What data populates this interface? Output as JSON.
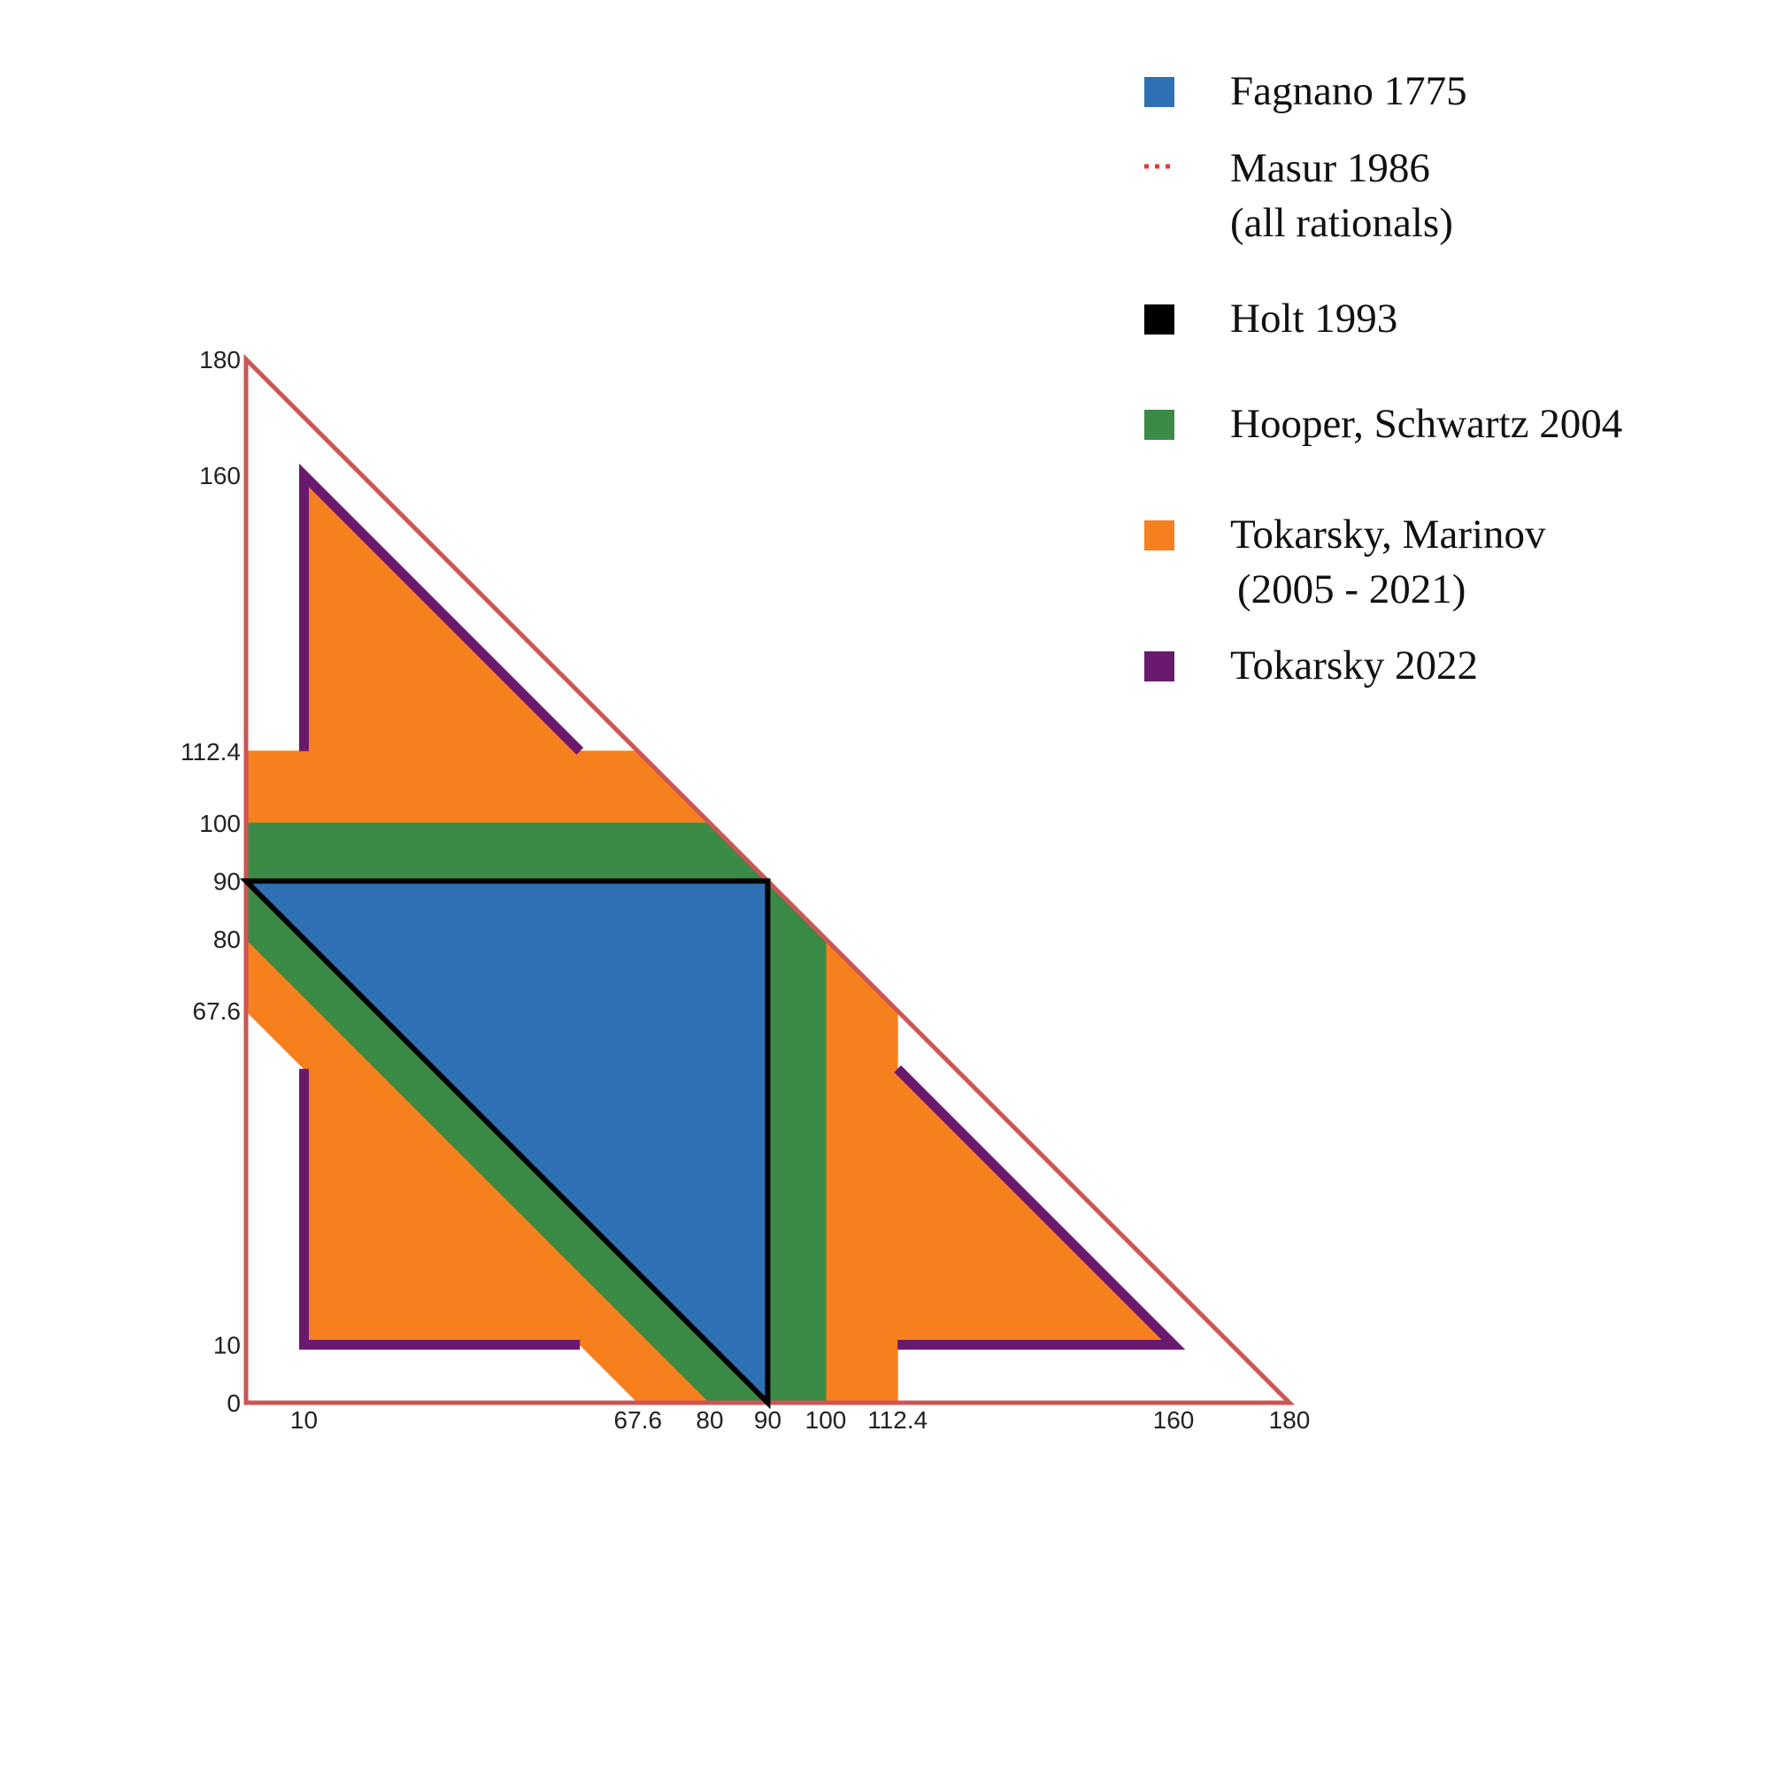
{
  "chart_data": {
    "type": "area",
    "title": "",
    "xlabel": "",
    "ylabel": "",
    "xlim": [
      0,
      180
    ],
    "ylim": [
      0,
      180
    ],
    "grid": false,
    "legend_placement": "top-right",
    "x_ticks": [
      "10",
      "67.6",
      "80",
      "90",
      "100",
      "112.4",
      "160",
      "180"
    ],
    "y_ticks": [
      "0",
      "10",
      "67.6",
      "80",
      "90",
      "100",
      "112.4",
      "160",
      "180"
    ],
    "x_tick_values": [
      10,
      67.6,
      80,
      90,
      100,
      112.4,
      160,
      180
    ],
    "y_tick_values": [
      0,
      10,
      67.6,
      80,
      90,
      100,
      112.4,
      160,
      180
    ],
    "series": [
      {
        "name": "Masur 1986 (all rationals)",
        "color": "#cd5555",
        "style": "outline",
        "polygons": [
          [
            [
              0,
              0
            ],
            [
              180,
              0
            ],
            [
              0,
              180
            ]
          ]
        ]
      },
      {
        "name": "Tokarsky 2022",
        "color": "#6a1a6e",
        "style": "outline",
        "polylines": [
          [
            [
              10,
              112.4
            ],
            [
              10,
              160
            ],
            [
              57.6,
              112.4
            ]
          ],
          [
            [
              112.4,
              57.6
            ],
            [
              160,
              10
            ],
            [
              112.4,
              10
            ]
          ],
          [
            [
              57.6,
              10
            ],
            [
              10,
              10
            ],
            [
              10,
              57.6
            ]
          ]
        ]
      },
      {
        "name": "Tokarsky, Marinov (2005 - 2021)",
        "color": "#f7801e",
        "style": "fill",
        "polygons": [
          [
            [
              10,
              112.4
            ],
            [
              10,
              160
            ],
            [
              57.6,
              112.4
            ]
          ],
          [
            [
              0,
              100
            ],
            [
              0,
              112.4
            ],
            [
              67.6,
              112.4
            ],
            [
              80,
              100
            ]
          ],
          [
            [
              112.4,
              57.6
            ],
            [
              160,
              10
            ],
            [
              112.4,
              10
            ]
          ],
          [
            [
              100,
              0
            ],
            [
              112.4,
              0
            ],
            [
              112.4,
              67.6
            ],
            [
              100,
              80
            ]
          ],
          [
            [
              10,
              10
            ],
            [
              10,
              57.6
            ],
            [
              0,
              67.6
            ],
            [
              0,
              80
            ],
            [
              80,
              0
            ],
            [
              67.6,
              0
            ],
            [
              57.6,
              10
            ]
          ]
        ]
      },
      {
        "name": "Hooper, Schwartz  2004",
        "color": "#3b8b47",
        "style": "fill",
        "polygons": [
          [
            [
              0,
              90
            ],
            [
              0,
              100
            ],
            [
              80,
              100
            ],
            [
              90,
              90
            ]
          ],
          [
            [
              90,
              0
            ],
            [
              100,
              0
            ],
            [
              100,
              80
            ],
            [
              90,
              90
            ]
          ],
          [
            [
              0,
              80
            ],
            [
              0,
              90
            ],
            [
              90,
              0
            ],
            [
              80,
              0
            ]
          ]
        ]
      },
      {
        "name": "Fagnano 1775",
        "color": "#2e70b3",
        "style": "fill",
        "polygons": [
          [
            [
              0,
              90
            ],
            [
              90,
              90
            ],
            [
              90,
              0
            ]
          ]
        ]
      },
      {
        "name": "Holt 1993",
        "color": "#000000",
        "style": "outline",
        "polygons": [
          [
            [
              0,
              90
            ],
            [
              90,
              90
            ],
            [
              90,
              0
            ]
          ]
        ]
      }
    ]
  },
  "legend": [
    {
      "lines": [
        "Fagnano 1775"
      ],
      "color": "#2e70b3",
      "marker": "square"
    },
    {
      "lines": [
        "Masur 1986",
        "(all rationals)"
      ],
      "color": "#e53935",
      "marker": "dotted"
    },
    {
      "lines": [
        "Holt 1993"
      ],
      "color": "#000000",
      "marker": "square"
    },
    {
      "lines": [
        "Hooper, Schwartz  2004"
      ],
      "color": "#3b8b47",
      "marker": "square"
    },
    {
      "lines": [
        "Tokarsky, Marinov",
        "(2005 - 2021)"
      ],
      "color": "#f7801e",
      "marker": "square"
    },
    {
      "lines": [
        "Tokarsky 2022"
      ],
      "color": "#6a1a6e",
      "marker": "square"
    }
  ]
}
